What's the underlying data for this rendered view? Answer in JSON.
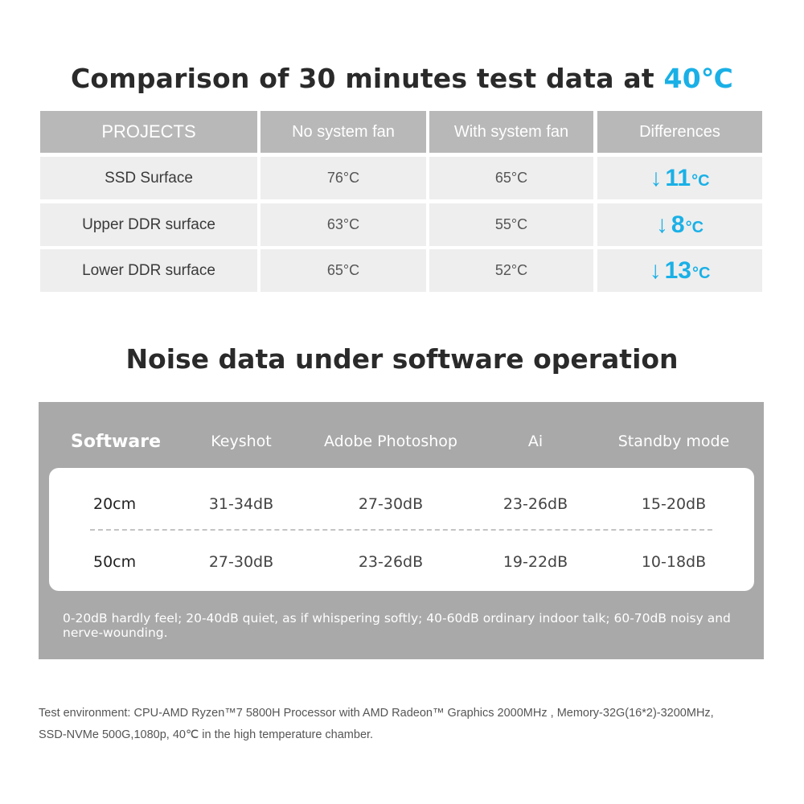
{
  "temperature": {
    "title_main": "Comparison of 30 minutes test data at ",
    "title_accent": "40℃",
    "headers": [
      "PROJECTS",
      "No system fan",
      "With system fan",
      "Differences"
    ],
    "rows": [
      {
        "project": "SSD Surface",
        "no_fan": "76°C",
        "with_fan": "65°C",
        "diff": "11",
        "diff_unit": "°C"
      },
      {
        "project": "Upper DDR surface",
        "no_fan": "63°C",
        "with_fan": "55°C",
        "diff": "8",
        "diff_unit": "°C"
      },
      {
        "project": "Lower DDR surface",
        "no_fan": "65°C",
        "with_fan": "52°C",
        "diff": "13",
        "diff_unit": "°C"
      }
    ],
    "accent_color": "#1ab0e6"
  },
  "noise": {
    "title": "Noise data under software operation",
    "headers": [
      "Software",
      "Keyshot",
      "Adobe Photoshop",
      "Ai",
      "Standby mode"
    ],
    "rows": [
      {
        "distance": "20cm",
        "values": [
          "31-34dB",
          "27-30dB",
          "23-26dB",
          "15-20dB"
        ]
      },
      {
        "distance": "50cm",
        "values": [
          "27-30dB",
          "23-26dB",
          "19-22dB",
          "10-18dB"
        ]
      }
    ],
    "note": "0-20dB hardly feel; 20-40dB quiet, as if whispering softly; 40-60dB ordinary indoor talk; 60-70dB noisy and nerve-wounding."
  },
  "footer": {
    "line1": "Test environment: CPU-AMD Ryzen™7 5800H Processor with AMD Radeon™ Graphics 2000MHz ,  Memory-32G(16*2)-3200MHz,",
    "line2": "SSD-NVMe 500G,1080p, 40℃ in the high temperature chamber."
  }
}
